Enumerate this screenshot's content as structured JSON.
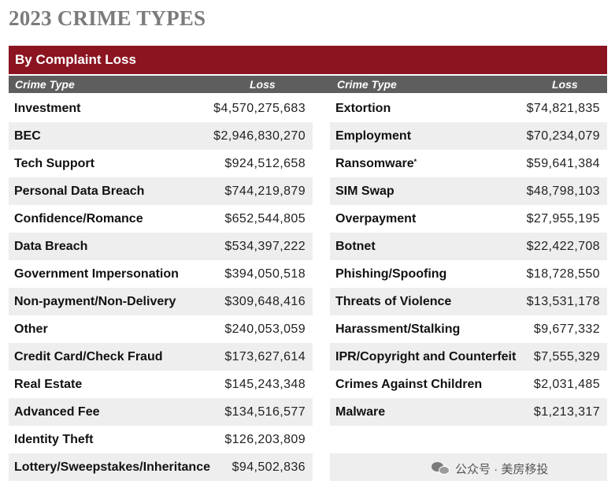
{
  "title": "2023 CRIME TYPES",
  "banner": "By Complaint Loss",
  "headers": {
    "crime_type": "Crime Type",
    "loss": "Loss"
  },
  "left_rows": [
    {
      "name": "Investment",
      "loss": "$4,570,275,683"
    },
    {
      "name": "BEC",
      "loss": "$2,946,830,270"
    },
    {
      "name": "Tech Support",
      "loss": "$924,512,658"
    },
    {
      "name": "Personal Data Breach",
      "loss": "$744,219,879"
    },
    {
      "name": "Confidence/Romance",
      "loss": "$652,544,805"
    },
    {
      "name": "Data Breach",
      "loss": "$534,397,222"
    },
    {
      "name": "Government Impersonation",
      "loss": "$394,050,518"
    },
    {
      "name": "Non-payment/Non-Delivery",
      "loss": "$309,648,416"
    },
    {
      "name": "Other",
      "loss": "$240,053,059"
    },
    {
      "name": "Credit Card/Check Fraud",
      "loss": "$173,627,614"
    },
    {
      "name": "Real Estate",
      "loss": "$145,243,348"
    },
    {
      "name": "Advanced Fee",
      "loss": "$134,516,577"
    },
    {
      "name": "Identity Theft",
      "loss": "$126,203,809"
    },
    {
      "name": "Lottery/Sweepstakes/Inheritance",
      "loss": "$94,502,836"
    }
  ],
  "right_rows": [
    {
      "name": "Extortion",
      "loss": "$74,821,835"
    },
    {
      "name": "Employment",
      "loss": "$70,234,079"
    },
    {
      "name": "Ransomware",
      "mark": "*",
      "loss": "$59,641,384"
    },
    {
      "name": "SIM Swap",
      "loss": "$48,798,103"
    },
    {
      "name": "Overpayment",
      "loss": "$27,955,195"
    },
    {
      "name": "Botnet",
      "loss": "$22,422,708"
    },
    {
      "name": "Phishing/Spoofing",
      "loss": "$18,728,550"
    },
    {
      "name": "Threats of Violence",
      "loss": "$13,531,178"
    },
    {
      "name": "Harassment/Stalking",
      "loss": "$9,677,332"
    },
    {
      "name": "IPR/Copyright and Counterfeit",
      "loss": "$7,555,329"
    },
    {
      "name": "Crimes Against Children",
      "loss": "$2,031,485"
    },
    {
      "name": "Malware",
      "loss": "$1,213,317"
    },
    {
      "name": "",
      "loss": ""
    },
    {
      "name": "",
      "loss": ""
    }
  ],
  "watermark": "公众号 · 美房移投",
  "colors": {
    "banner": "#8b1420",
    "subhead": "#5e5e5e",
    "shade": "#eeeeee",
    "title": "#7b7b7b"
  }
}
